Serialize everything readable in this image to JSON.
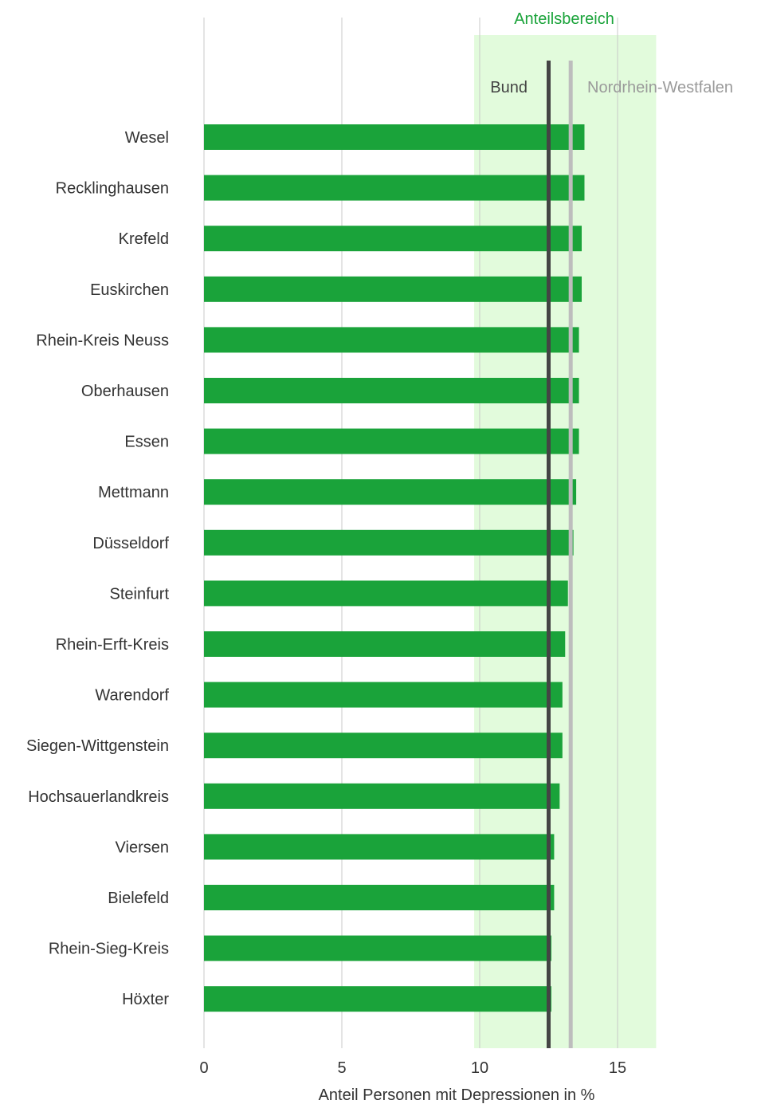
{
  "chart_data": {
    "type": "bar",
    "orientation": "horizontal",
    "categories": [
      "Wesel",
      "Recklinghausen",
      "Krefeld",
      "Euskirchen",
      "Rhein-Kreis Neuss",
      "Oberhausen",
      "Essen",
      "Mettmann",
      "Düsseldorf",
      "Steinfurt",
      "Rhein-Erft-Kreis",
      "Warendorf",
      "Siegen-Wittgenstein",
      "Hochsauerlandkreis",
      "Viersen",
      "Bielefeld",
      "Rhein-Sieg-Kreis",
      "Höxter"
    ],
    "values": [
      13.8,
      13.8,
      13.7,
      13.7,
      13.6,
      13.6,
      13.6,
      13.5,
      13.4,
      13.2,
      13.1,
      13.0,
      13.0,
      12.9,
      12.7,
      12.7,
      12.6,
      12.6
    ],
    "xlabel": "Anteil Personen mit Depressionen in %",
    "xlim": [
      0,
      16.5
    ],
    "xticks": [
      0,
      5,
      10,
      15
    ],
    "grid": true,
    "bar_color": "#1aa33a",
    "range": {
      "label": "Anteilsbereich",
      "from": 9.8,
      "to": 16.4,
      "color": "#e2fbdc"
    },
    "reference_lines": [
      {
        "label": "Bund",
        "value": 12.5,
        "color": "#444444"
      },
      {
        "label": "Nordrhein-Westfalen",
        "value": 13.3,
        "color": "#bdbdbd"
      }
    ]
  }
}
